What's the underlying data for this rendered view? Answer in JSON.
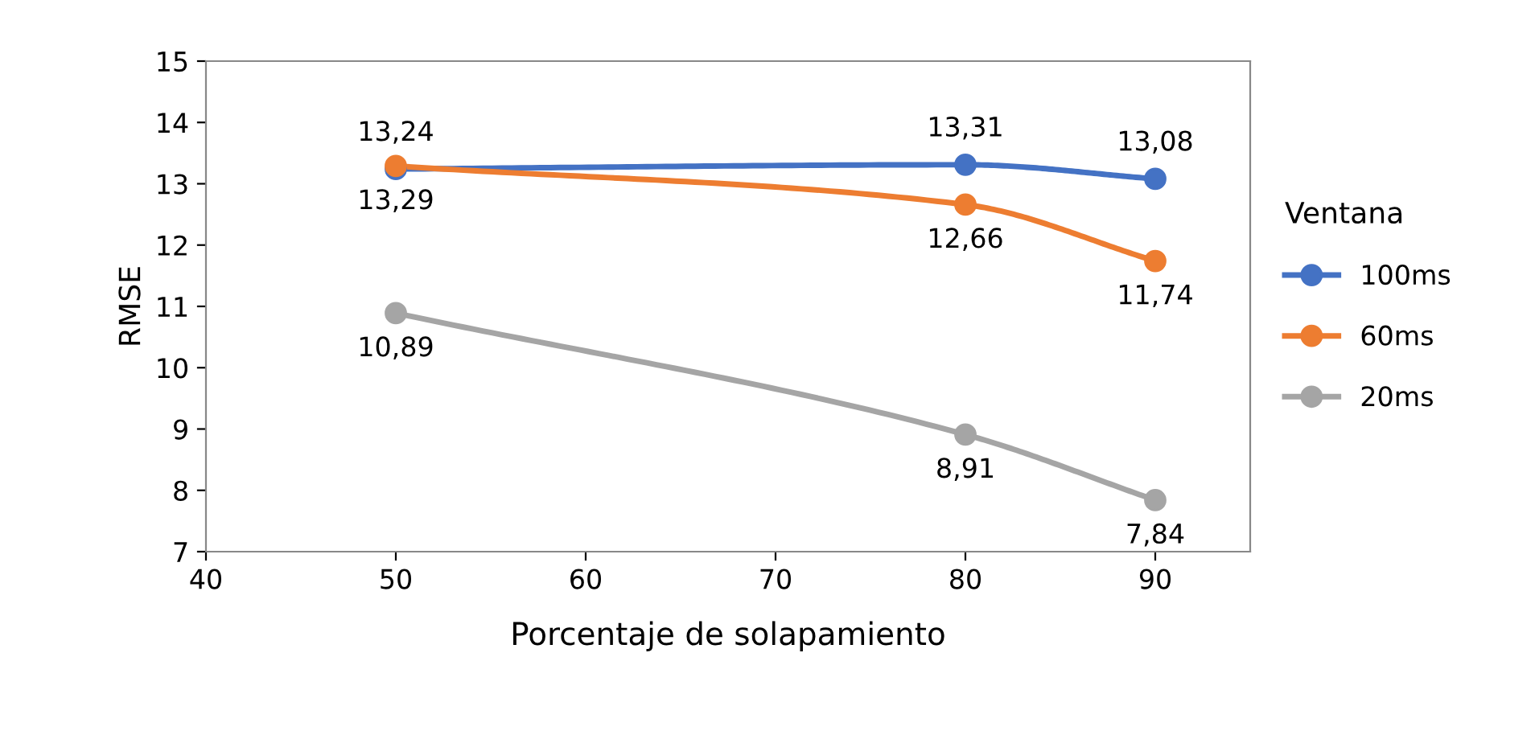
{
  "chart_data": {
    "type": "line",
    "xlabel": "Porcentaje de solapamiento",
    "ylabel": "RMSE",
    "legend_title": "Ventana",
    "legend": "right",
    "marker": "circle",
    "line_style": "solid",
    "grid": false,
    "x": [
      50,
      80,
      90
    ],
    "xlim": [
      40,
      95
    ],
    "xticks": [
      40,
      50,
      60,
      70,
      80,
      90
    ],
    "ylim": [
      7,
      15
    ],
    "yticks": [
      7,
      8,
      9,
      10,
      11,
      12,
      13,
      14,
      15
    ],
    "series": [
      {
        "name": "100ms",
        "color": "#4472c4",
        "values": [
          13.24,
          13.31,
          13.08
        ],
        "value_labels": [
          "13,24",
          "13,31",
          "13,08"
        ]
      },
      {
        "name": "60ms",
        "color": "#ed7d31",
        "values": [
          13.29,
          12.66,
          11.74
        ],
        "value_labels": [
          "13,29",
          "12,66",
          "11,74"
        ]
      },
      {
        "name": "20ms",
        "color": "#a5a5a5",
        "values": [
          10.89,
          8.91,
          7.84
        ],
        "value_labels": [
          "10,89",
          "8,91",
          "7,84"
        ]
      }
    ]
  }
}
